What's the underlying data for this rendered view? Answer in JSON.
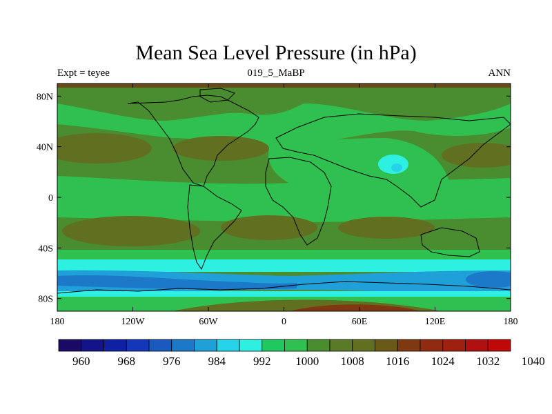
{
  "title": "Mean Sea Level Pressure (in hPa)",
  "subtitle_left": "Expt = teyee",
  "subtitle_center": "019_5_MaBP",
  "subtitle_right": "ANN",
  "map": {
    "lon_range": [
      -180,
      180
    ],
    "lat_range": [
      -90,
      90
    ],
    "x_ticks": [
      {
        "value": -180,
        "label": "180"
      },
      {
        "value": -120,
        "label": "120W"
      },
      {
        "value": -60,
        "label": "60W"
      },
      {
        "value": 0,
        "label": "0"
      },
      {
        "value": 60,
        "label": "60E"
      },
      {
        "value": 120,
        "label": "120E"
      },
      {
        "value": 180,
        "label": "180"
      }
    ],
    "y_ticks": [
      {
        "value": 80,
        "label": "80N"
      },
      {
        "value": 40,
        "label": "40N"
      },
      {
        "value": 0,
        "label": "0"
      },
      {
        "value": -40,
        "label": "40S"
      },
      {
        "value": -80,
        "label": "80S"
      }
    ]
  },
  "colorbar": {
    "colors": [
      "#1a0a66",
      "#13138a",
      "#1020a5",
      "#1436b8",
      "#1a5abf",
      "#1c78c8",
      "#20a0d8",
      "#25d4e8",
      "#2ef0e0",
      "#20c860",
      "#30c050",
      "#4a8c30",
      "#5a7a28",
      "#607020",
      "#6a5a18",
      "#803810",
      "#902a10",
      "#a02010",
      "#b01010",
      "#c00808"
    ],
    "labels": [
      "960",
      "968",
      "976",
      "984",
      "992",
      "1000",
      "1008",
      "1016",
      "1024",
      "1032",
      "1040"
    ]
  }
}
